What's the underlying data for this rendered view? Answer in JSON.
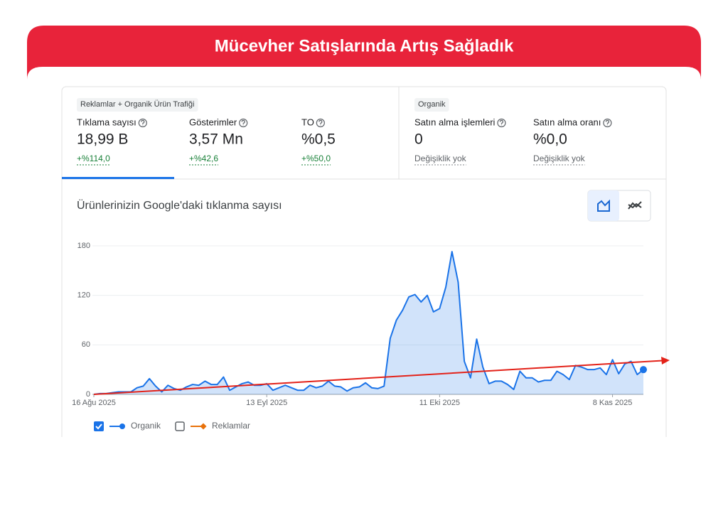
{
  "header": {
    "title": "Mücevher Satışlarında Artış Sağladık"
  },
  "groups": [
    {
      "label": "Reklamlar + Organik Ürün Trafiği",
      "metrics": [
        {
          "name": "Tıklama sayısı",
          "value": "18,99 B",
          "change": "+%114,0"
        },
        {
          "name": "Gösterimler",
          "value": "3,57 Mn",
          "change": "+%42,6"
        },
        {
          "name": "TO",
          "value": "%0,5",
          "change": "+%50,0"
        }
      ]
    },
    {
      "label": "Organik",
      "metrics": [
        {
          "name": "Satın alma işlemleri",
          "value": "0",
          "change": "Değişiklik yok"
        },
        {
          "name": "Satın alma oranı",
          "value": "%0,0",
          "change": "Değişiklik yok"
        }
      ]
    }
  ],
  "chart_data": {
    "type": "area",
    "title": "Ürünlerinizin Google'daki tıklanma sayısı",
    "categories": [
      "16 Ağu 2025",
      null,
      null,
      null,
      null,
      null,
      null,
      null,
      null,
      null,
      null,
      null,
      null,
      null,
      null,
      null,
      null,
      null,
      null,
      null,
      null,
      null,
      null,
      null,
      null,
      null,
      null,
      null,
      "13 Eyl 2025",
      null,
      null,
      null,
      null,
      null,
      null,
      null,
      null,
      null,
      null,
      null,
      null,
      null,
      null,
      null,
      null,
      null,
      null,
      null,
      null,
      null,
      null,
      null,
      null,
      null,
      null,
      null,
      "11 Eki 2025",
      null,
      null,
      null,
      null,
      null,
      null,
      null,
      null,
      null,
      null,
      null,
      null,
      null,
      null,
      null,
      null,
      null,
      null,
      null,
      null,
      null,
      null,
      null,
      null,
      null,
      null,
      null,
      "8 Kas 2025",
      null,
      null,
      null,
      null,
      null
    ],
    "series": [
      {
        "name": "Organik",
        "color": "#1a73e8",
        "values": [
          0,
          1,
          1,
          2,
          3,
          3,
          3,
          8,
          10,
          19,
          10,
          3,
          11,
          7,
          5,
          9,
          12,
          11,
          16,
          12,
          12,
          21,
          5,
          9,
          13,
          15,
          11,
          11,
          13,
          5,
          8,
          11,
          8,
          5,
          5,
          11,
          8,
          10,
          16,
          10,
          9,
          4,
          8,
          9,
          14,
          8,
          7,
          10,
          68,
          90,
          102,
          118,
          121,
          112,
          120,
          100,
          104,
          130,
          173,
          136,
          40,
          20,
          67,
          33,
          13,
          16,
          16,
          12,
          6,
          28,
          20,
          20,
          15,
          17,
          17,
          28,
          24,
          18,
          35,
          33,
          30,
          30,
          32,
          24,
          42,
          25,
          37,
          40,
          24,
          30
        ]
      }
    ],
    "hidden_series": [
      {
        "name": "Reklamlar",
        "color": "#e8710a"
      }
    ],
    "ylim": [
      0,
      180
    ],
    "yticks": [
      0,
      60,
      120,
      180
    ],
    "grid": true
  }
}
